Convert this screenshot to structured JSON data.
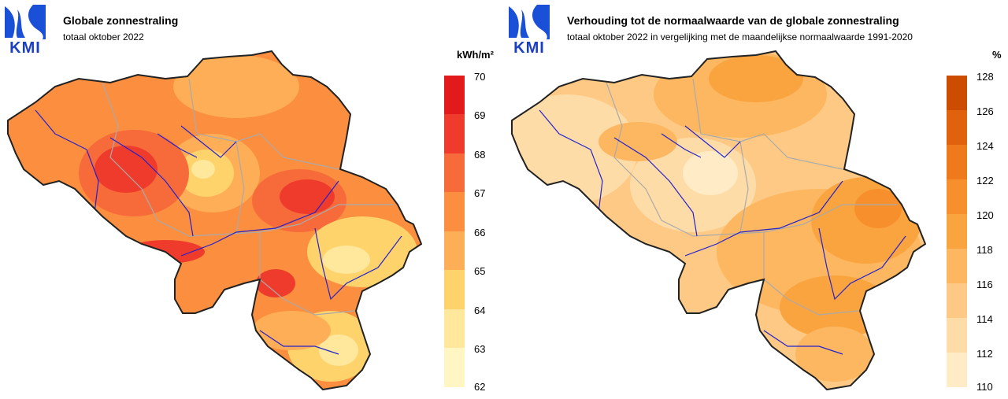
{
  "left": {
    "logo_text": "KMI",
    "title": "Globale zonnestraling",
    "subtitle": "totaal oktober 2022",
    "unit": "kWh/m²",
    "legend": [
      {
        "label": "70",
        "color": "#e31a1c"
      },
      {
        "label": "69",
        "color": "#ef3b2c"
      },
      {
        "label": "68",
        "color": "#f76b3a"
      },
      {
        "label": "67",
        "color": "#fb8e3f"
      },
      {
        "label": "66",
        "color": "#fdae56"
      },
      {
        "label": "65",
        "color": "#fed36c"
      },
      {
        "label": "64",
        "color": "#ffe79c"
      },
      {
        "label": "63",
        "color": "#fff6c4"
      },
      {
        "label": "62",
        "color": ""
      }
    ]
  },
  "right": {
    "logo_text": "KMI",
    "title": "Verhouding tot de normaalwaarde van de globale zonnestraling",
    "subtitle": "totaal oktober 2022 in vergelijking met de maandelijkse normaalwaarde 1991-2020",
    "unit": "%",
    "legend": [
      {
        "label": "128",
        "color": "#cc4c02"
      },
      {
        "label": "126",
        "color": "#e0620d"
      },
      {
        "label": "124",
        "color": "#ee7a1c"
      },
      {
        "label": "122",
        "color": "#f68f2c"
      },
      {
        "label": "120",
        "color": "#faa43f"
      },
      {
        "label": "118",
        "color": "#fdb760"
      },
      {
        "label": "116",
        "color": "#fec985"
      },
      {
        "label": "114",
        "color": "#fedca8"
      },
      {
        "label": "112",
        "color": "#ffecc6"
      },
      {
        "label": "110",
        "color": ""
      }
    ]
  }
}
